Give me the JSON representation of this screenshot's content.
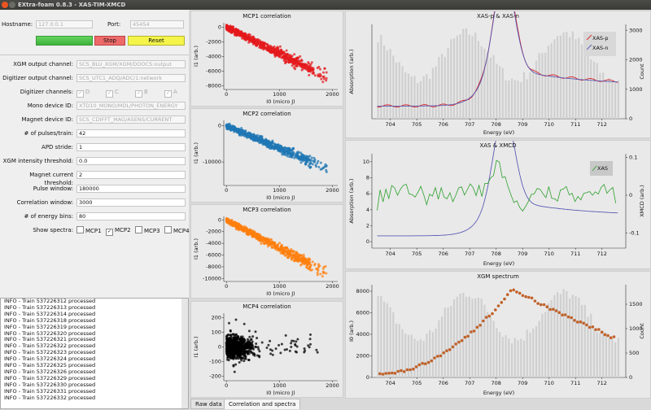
{
  "window": {
    "title": "EXtra-foam 0.8.3 - XAS-TIM-XMCD"
  },
  "connection": {
    "hostname_label": "Hostname:",
    "hostname": "127.0.0.1",
    "port_label": "Port:",
    "port": "45454",
    "stop": "Stop",
    "reset": "Reset"
  },
  "config": {
    "rows": [
      {
        "label": "XGM output channel:",
        "value": "SCS_BLU_XGM/XGM/DOOCS:output",
        "disabled": true
      },
      {
        "label": "Digitizer output channel:",
        "value": "SCS_UTC1_ADQ/ADC/1:network",
        "disabled": true
      },
      {
        "label": "Mono device ID:",
        "value": "XTD10_MONO/MDL/PHOTON_ENERGY",
        "disabled": true
      },
      {
        "label": "Magnet device ID:",
        "value": "SCS_CDIFFT_MAG/ASENS/CURRENT",
        "disabled": true
      },
      {
        "label": "# of pulses/train:",
        "value": "42",
        "disabled": false
      },
      {
        "label": "APD stride:",
        "value": "1",
        "disabled": false
      },
      {
        "label": "XGM intensity threshold:",
        "value": "0.0",
        "disabled": false
      },
      {
        "label": "Magnet current threshold:",
        "value": "2",
        "disabled": false
      },
      {
        "label": "Pulse window:",
        "value": "180000",
        "disabled": false
      },
      {
        "label": "Correlation window:",
        "value": "3000",
        "disabled": false
      },
      {
        "label": "# of energy bins:",
        "value": "80",
        "disabled": false
      }
    ],
    "digitizer_label": "Digitizer channels:",
    "digitizer_channels": [
      "D",
      "C",
      "B",
      "A"
    ],
    "spectra_label": "Show spectra:",
    "spectra": [
      {
        "name": "MCP1",
        "checked": false
      },
      {
        "name": "MCP2",
        "checked": true
      },
      {
        "name": "MCP3",
        "checked": false
      },
      {
        "name": "MCP4",
        "checked": false
      }
    ]
  },
  "log": [
    "INFO - Train 537226312 processed",
    "INFO - Train 537226313 processed",
    "INFO - Train 537226314 processed",
    "INFO - Train 537226318 processed",
    "INFO - Train 537226319 processed",
    "INFO - Train 537226320 processed",
    "INFO - Train 537226321 processed",
    "INFO - Train 537226322 processed",
    "INFO - Train 537226323 processed",
    "INFO - Train 537226324 processed",
    "INFO - Train 537226325 processed",
    "INFO - Train 537226326 processed",
    "INFO - Train 537226329 processed",
    "INFO - Train 537226330 processed",
    "INFO - Train 537226331 processed",
    "INFO - Train 537226332 processed"
  ],
  "tabs": [
    "Raw data",
    "Correlation and spectra"
  ],
  "colors": {
    "mcp1": "#e41a1c",
    "mcp2": "#1f77b4",
    "mcp3": "#ff7f0e",
    "mcp4": "#000000",
    "xas_p": "#d62728",
    "xas_n": "#5b5bb5",
    "xmcd": "#2ca02c",
    "xgm": "#c0622a",
    "hist": "#cfcfcf"
  },
  "chart_data": [
    {
      "type": "scatter",
      "title": "MCP1 correlation",
      "xlabel": "I0 (micro J)",
      "ylabel": "I1 (arb.)",
      "xlim": [
        -50,
        2100
      ],
      "ylim": [
        -8500,
        600
      ],
      "xticks": [
        0,
        1000,
        2000
      ],
      "yticks": [
        0,
        -2000,
        -4000,
        -6000,
        -8000
      ],
      "slope": -3.6,
      "spread": 600,
      "x_range": [
        0,
        1600
      ],
      "color": "#e41a1c"
    },
    {
      "type": "scatter",
      "title": "MCP2 correlation",
      "xlabel": "I0 (micro J)",
      "ylabel": "I1 (arb.)",
      "xlim": [
        -50,
        2100
      ],
      "ylim": [
        -16500,
        1500
      ],
      "xticks": [
        0,
        1000,
        2000
      ],
      "yticks": [
        0,
        -10000
      ],
      "slope": -6.2,
      "spread": 1100,
      "x_range": [
        0,
        1600
      ],
      "color": "#1f77b4"
    },
    {
      "type": "scatter",
      "title": "MCP3 correlation",
      "xlabel": "I0 (micro J)",
      "ylabel": "I1 (arb.)",
      "xlim": [
        -50,
        2100
      ],
      "ylim": [
        -10500,
        600
      ],
      "xticks": [
        0,
        1000,
        2000
      ],
      "yticks": [
        0,
        -2000,
        -4000,
        -6000,
        -8000,
        -10000
      ],
      "slope": -4.8,
      "spread": 700,
      "x_range": [
        0,
        1600
      ],
      "color": "#ff7f0e"
    },
    {
      "type": "scatter",
      "title": "MCP4 correlation",
      "xlabel": "I0 (micro J)",
      "ylabel": "I1 (arb.)",
      "xlim": [
        -50,
        2100
      ],
      "ylim": [
        -230,
        230
      ],
      "xticks": [
        0,
        1000,
        2000
      ],
      "yticks": [
        200,
        100,
        0,
        -100,
        -200
      ],
      "slope": 0,
      "spread": 70,
      "x_range": [
        0,
        1600
      ],
      "color": "#000000"
    },
    {
      "type": "line",
      "title": "XAS-p & XAS-n",
      "xlabel": "Energy (eV)",
      "ylabel": "Absorption (arb.)",
      "y2label": "Count",
      "xlim": [
        703.3,
        712.9
      ],
      "xticks": [
        704,
        705,
        706,
        707,
        708,
        709,
        710,
        711,
        712
      ],
      "y2lim": [
        0,
        3200
      ],
      "y2ticks": [
        0,
        1000,
        2000,
        3000
      ],
      "series": [
        {
          "name": "XAS-p",
          "color": "#d62728"
        },
        {
          "name": "XAS-n",
          "color": "#5b5bb5"
        }
      ]
    },
    {
      "type": "line",
      "title": "XAS & XMCD",
      "xlabel": "Energy (eV)",
      "ylabel": "Absorption (arb.)",
      "y2label": "XMCD (arb.)",
      "xlim": [
        703.3,
        712.9
      ],
      "xticks": [
        704,
        705,
        706,
        707,
        708,
        709,
        710,
        711,
        712
      ],
      "ylim": [
        -0.8,
        11
      ],
      "yticks": [
        0,
        2,
        4,
        6,
        8,
        10
      ],
      "y2lim": [
        -0.14,
        0.11
      ],
      "y2ticks": [
        0.1,
        0,
        -0.1
      ],
      "series": [
        {
          "name": "XAS",
          "color": "#5b5bb5"
        },
        {
          "name": "XMCD",
          "color": "#2ca02c"
        }
      ]
    },
    {
      "type": "scatter",
      "title": "XGM spectrum",
      "xlabel": "Energy (eV)",
      "ylabel": "I0 (arb.)",
      "y2label": "Count",
      "xlim": [
        703.3,
        712.9
      ],
      "xticks": [
        704,
        705,
        706,
        707,
        708,
        709,
        710,
        711,
        712
      ],
      "ylim": [
        0,
        8600
      ],
      "yticks": [
        0,
        2000,
        4000,
        6000,
        8000
      ],
      "y2lim": [
        0,
        1900
      ],
      "y2ticks": [
        0,
        500,
        1000,
        1500
      ],
      "color": "#c0622a"
    }
  ]
}
